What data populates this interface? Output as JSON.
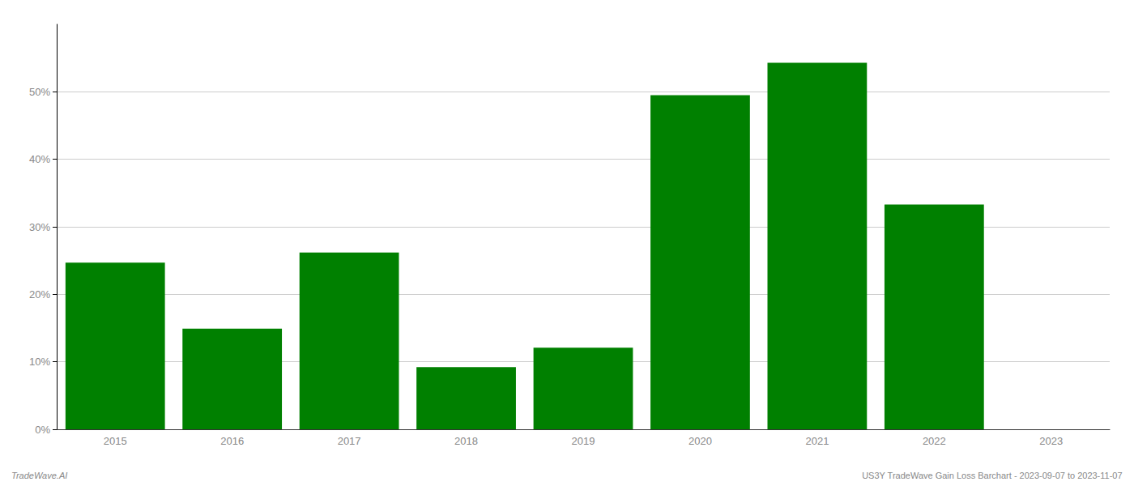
{
  "chart_data": {
    "type": "bar",
    "categories": [
      "2015",
      "2016",
      "2017",
      "2018",
      "2019",
      "2020",
      "2021",
      "2022",
      "2023"
    ],
    "values": [
      24.7,
      14.9,
      26.2,
      9.2,
      12.1,
      49.5,
      54.3,
      33.3,
      null
    ],
    "color": "#008000",
    "ylim": [
      0,
      60
    ],
    "yticks": [
      {
        "value": 0,
        "label": "0%"
      },
      {
        "value": 10,
        "label": "10%"
      },
      {
        "value": 20,
        "label": "20%"
      },
      {
        "value": 30,
        "label": "30%"
      },
      {
        "value": 40,
        "label": "40%"
      },
      {
        "value": 50,
        "label": "50%"
      }
    ],
    "grid": true,
    "annotations": [
      "TradeWave.AI",
      "US3Y TradeWave Gain Loss Barchart - 2023-09-07 to 2023-11-07"
    ]
  }
}
